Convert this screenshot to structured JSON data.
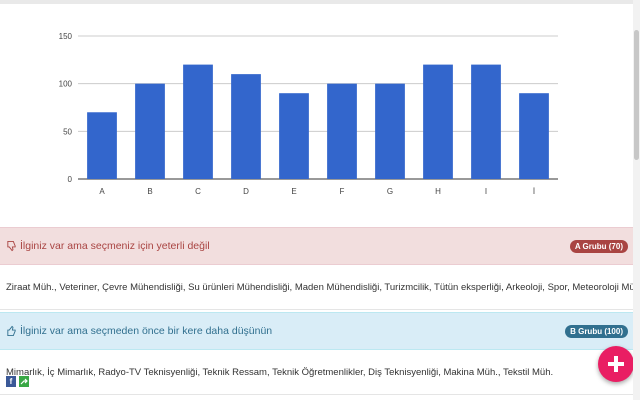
{
  "chart_data": {
    "type": "bar",
    "categories": [
      "A",
      "B",
      "C",
      "D",
      "E",
      "F",
      "G",
      "H",
      "I",
      "İ"
    ],
    "values": [
      70,
      100,
      120,
      110,
      90,
      100,
      100,
      120,
      120,
      90
    ],
    "ylim": [
      0,
      150
    ],
    "yticks": [
      0,
      50,
      100,
      150
    ],
    "grid": true,
    "colors": {
      "bar": "#3366cc"
    }
  },
  "panels": [
    {
      "title": "İlginiz var ama seçmeniz için yeterli değil",
      "badge": "A Grubu (70)",
      "body": "Ziraat Müh., Veteriner, Çevre Mühendisliği, Su ürünleri Mühendisliği, Maden Mühendisliği, Turizmcilik, Tütün eksperliği, Arkeoloji, Spor, Meteoroloji Mühendisliği, Coğrafya",
      "icon": "thumbs-down-icon"
    },
    {
      "title": "İlginiz var ama seçmeden önce bir kere daha düşünün",
      "badge": "B Grubu (100)",
      "body": "Mimarlık, İç Mimarlık, Radyo-TV Teknisyenliği, Teknik Ressam, Teknik Öğretmenlikler, Diş Teknisyenliği, Makina Müh., Tekstil Müh.",
      "icon": "thumbs-up-icon"
    }
  ],
  "share": {
    "facebook_icon": "f",
    "share_icon": "share-icon"
  },
  "fab": {
    "icon": "plus-icon",
    "color": "#e91e63"
  }
}
